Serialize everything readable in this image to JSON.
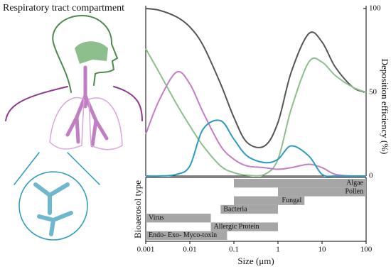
{
  "chart_data": {
    "type": "line",
    "title": "Respiratory tract compartment",
    "x_label": "Size (μm)",
    "y_label": "Deposition efficiency (%)",
    "ranges_label": "Bioaerosol type",
    "x_scale": "log",
    "xlim": [
      0.001,
      100
    ],
    "xticks": [
      0.001,
      0.01,
      0.1,
      1,
      10,
      100
    ],
    "ylim": [
      0,
      100
    ],
    "yticks": [
      0,
      50,
      100
    ],
    "x": [
      0.001,
      0.002,
      0.005,
      0.01,
      0.02,
      0.05,
      0.1,
      0.2,
      0.5,
      1,
      2,
      5,
      10,
      20,
      50,
      100
    ],
    "series": [
      {
        "color": "#555555",
        "values": [
          100,
          99,
          95,
          89,
          78,
          55,
          35,
          20,
          18,
          32,
          62,
          85,
          80,
          65,
          53,
          50
        ]
      },
      {
        "color": "#8dbf8d",
        "values": [
          76,
          62,
          43,
          30,
          18,
          6,
          2,
          0.5,
          1,
          10,
          40,
          68,
          68,
          60,
          53,
          50
        ]
      },
      {
        "color": "#c27ec2",
        "values": [
          25,
          45,
          62,
          55,
          38,
          18,
          10,
          6,
          5,
          4,
          5,
          7,
          5,
          1,
          0,
          0
        ]
      },
      {
        "color": "#2a9bc0",
        "values": [
          0,
          0,
          1,
          6,
          28,
          33,
          22,
          12,
          8,
          10,
          18,
          12,
          1,
          0,
          0,
          0
        ]
      }
    ],
    "ranges": [
      {
        "name": "Algae",
        "start": 0.1,
        "end": 100
      },
      {
        "name": "Pollen",
        "start": 1,
        "end": 100
      },
      {
        "name": "Fungal",
        "start": 0.1,
        "end": 4
      },
      {
        "name": "Bacteria",
        "start": 0.05,
        "end": 1
      },
      {
        "name": "Virus",
        "start": 0.001,
        "end": 0.03
      },
      {
        "name": "Allergic Protein",
        "start": 0.03,
        "end": 1
      },
      {
        "name": "Endo- Exo- Myco-toxin",
        "start": 0.001,
        "end": 0.07
      }
    ],
    "range_color": "#a6a6a6"
  }
}
